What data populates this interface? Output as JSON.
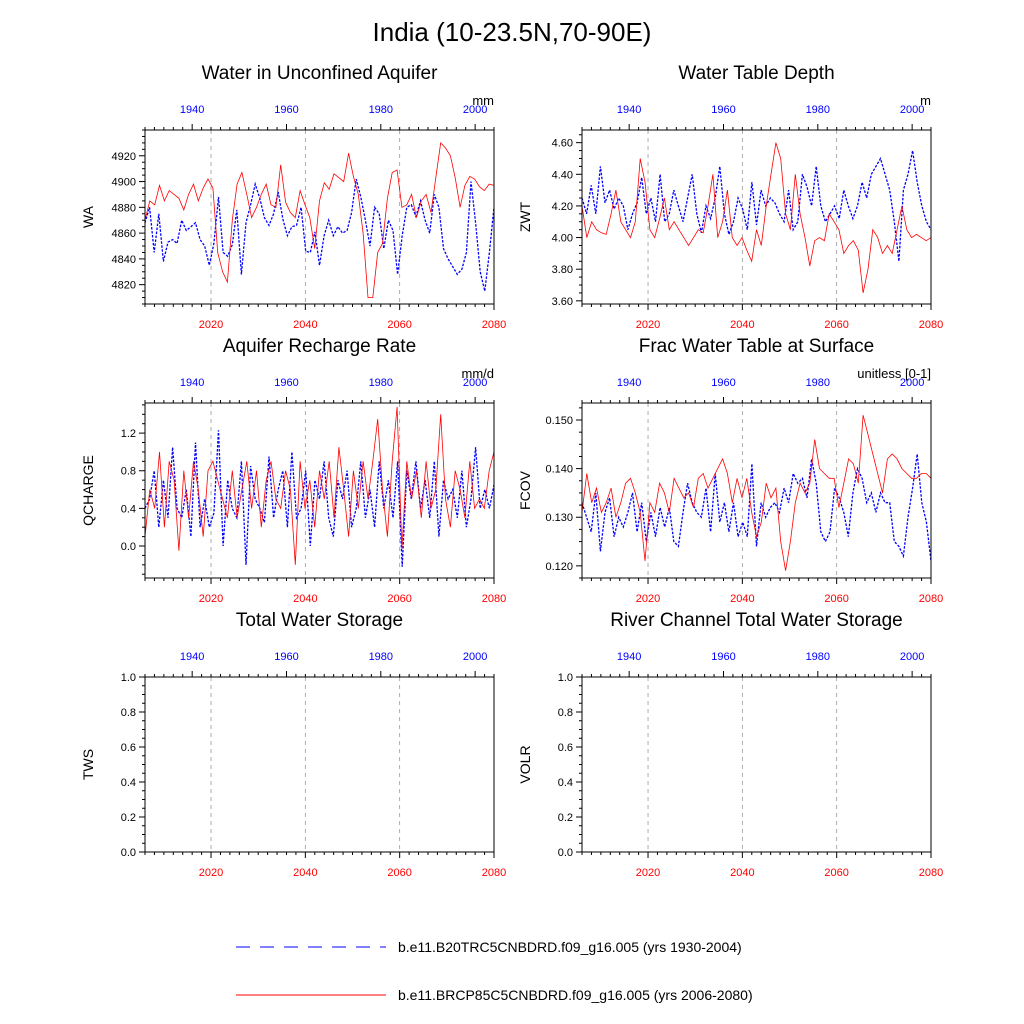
{
  "figure": {
    "title": "India (10-23.5N,70-90E)"
  },
  "legend": {
    "entries": [
      {
        "label": "b.e11.B20TRC5CNBDRD.f09_g16.005 (yrs 1930-2004)",
        "color": "#0000ff",
        "style": "dashed"
      },
      {
        "label": "b.e11.BRCP85C5CNBDRD.f09_g16.005 (yrs 2006-2080)",
        "color": "#ff0000",
        "style": "solid"
      }
    ]
  },
  "colors": {
    "historical": "#0000ff",
    "future": "#ff0000",
    "axis": "#000000",
    "ref_lines": "#999999"
  },
  "chart_data": [
    {
      "type": "line",
      "title": "Water in Unconfined Aquifer",
      "ylabel": "WA",
      "units": "mm",
      "ylim": [
        4805,
        4940
      ],
      "yticks": [
        4820,
        4840,
        4860,
        4880,
        4900,
        4920
      ],
      "ytick_labels": [
        "4820",
        "4840",
        "4860",
        "4880",
        "4900",
        "4920"
      ],
      "bottom_axis": {
        "range": [
          2006,
          2080
        ],
        "ticks": [
          2020,
          2040,
          2060,
          2080
        ],
        "tick_labels": [
          "2020",
          "2040",
          "2060",
          "2080"
        ]
      },
      "top_axis": {
        "range": [
          1930,
          2004
        ],
        "ticks": [
          1940,
          1960,
          1980,
          2000
        ],
        "tick_labels": [
          "1940",
          "1960",
          "1980",
          "2000"
        ]
      },
      "series": [
        {
          "name": "b.e11.B20TRC5CNBDRD.f09_g16.005",
          "years": "1930-2004",
          "values": [
            4868,
            4880,
            4845,
            4875,
            4838,
            4853,
            4855,
            4852,
            4870,
            4862,
            4865,
            4868,
            4855,
            4850,
            4835,
            4852,
            4888,
            4845,
            4842,
            4851,
            4878,
            4828,
            4868,
            4882,
            4898,
            4887,
            4872,
            4866,
            4875,
            4892,
            4871,
            4858,
            4865,
            4866,
            4880,
            4846,
            4845,
            4861,
            4835,
            4858,
            4870,
            4858,
            4865,
            4860,
            4862,
            4876,
            4902,
            4888,
            4870,
            4850,
            4880,
            4875,
            4848,
            4870,
            4862,
            4828,
            4858,
            4880,
            4882,
            4873,
            4885,
            4870,
            4860,
            4890,
            4880,
            4848,
            4840,
            4834,
            4828,
            4832,
            4845,
            4900,
            4868,
            4830,
            4815,
            4845,
            4880
          ]
        },
        {
          "name": "b.e11.BRCP85C5CNBDRD.f09_g16.005",
          "years": "2006-2080",
          "values": [
            4870,
            4885,
            4882,
            4897,
            4885,
            4893,
            4890,
            4887,
            4878,
            4890,
            4898,
            4885,
            4895,
            4902,
            4895,
            4845,
            4830,
            4822,
            4870,
            4898,
            4907,
            4890,
            4872,
            4880,
            4890,
            4898,
            4882,
            4880,
            4913,
            4884,
            4876,
            4872,
            4893,
            4882,
            4872,
            4848,
            4885,
            4899,
            4894,
            4906,
            4903,
            4900,
            4922,
            4904,
            4890,
            4860,
            4810,
            4810,
            4845,
            4852,
            4887,
            4907,
            4909,
            4880,
            4882,
            4890,
            4872,
            4885,
            4890,
            4876,
            4903,
            4930,
            4926,
            4920,
            4903,
            4880,
            4897,
            4904,
            4902,
            4896,
            4893,
            4898,
            4897
          ]
        }
      ]
    },
    {
      "type": "line",
      "title": "Water Table Depth",
      "ylabel": "ZWT",
      "units": "m",
      "ylim": [
        3.58,
        4.68
      ],
      "yticks": [
        3.6,
        3.8,
        4.0,
        4.2,
        4.4,
        4.6
      ],
      "ytick_labels": [
        "3.60",
        "3.80",
        "4.00",
        "4.20",
        "4.40",
        "4.60"
      ],
      "bottom_axis": {
        "range": [
          2006,
          2080
        ],
        "ticks": [
          2020,
          2040,
          2060,
          2080
        ],
        "tick_labels": [
          "2020",
          "2040",
          "2060",
          "2080"
        ]
      },
      "top_axis": {
        "range": [
          1930,
          2004
        ],
        "ticks": [
          1940,
          1960,
          1980,
          2000
        ],
        "tick_labels": [
          "1940",
          "1960",
          "1980",
          "2000"
        ]
      },
      "series": [
        {
          "name": "b.e11.B20TRC5CNBDRD.f09_g16.005",
          "years": "1930-2004",
          "values": [
            4.25,
            4.15,
            4.33,
            4.15,
            4.45,
            4.22,
            4.3,
            4.18,
            4.25,
            4.2,
            4.05,
            4.15,
            4.22,
            4.38,
            4.15,
            4.25,
            4.1,
            4.4,
            4.1,
            4.15,
            4.3,
            4.2,
            4.1,
            4.25,
            4.4,
            4.15,
            4.03,
            4.2,
            4.12,
            4.25,
            4.45,
            4.15,
            4.02,
            4.1,
            4.25,
            4.18,
            4.05,
            4.35,
            4.08,
            4.3,
            4.2,
            4.25,
            4.22,
            4.15,
            4.1,
            4.3,
            4.05,
            4.1,
            4.4,
            4.32,
            4.2,
            4.45,
            4.2,
            4.1,
            4.15,
            4.2,
            4.12,
            4.3,
            4.2,
            4.12,
            4.2,
            4.35,
            4.25,
            4.4,
            4.45,
            4.5,
            4.4,
            4.3,
            4.1,
            3.85,
            4.3,
            4.4,
            4.55,
            4.35,
            4.2,
            4.1,
            4.05
          ]
        },
        {
          "name": "b.e11.BRCP85C5CNBDRD.f09_g16.005",
          "years": "2006-2080",
          "values": [
            4.2,
            4.0,
            4.1,
            4.05,
            4.03,
            4.02,
            4.15,
            4.3,
            4.1,
            4.05,
            4.0,
            4.1,
            4.5,
            4.35,
            4.05,
            4.0,
            4.12,
            4.25,
            4.05,
            4.1,
            4.05,
            4.0,
            3.95,
            4.0,
            4.05,
            4.03,
            4.2,
            4.4,
            4.0,
            4.1,
            4.3,
            4.0,
            3.95,
            4.0,
            3.92,
            3.85,
            4.05,
            3.95,
            4.2,
            4.4,
            4.6,
            4.5,
            4.15,
            4.05,
            4.4,
            4.15,
            4.0,
            3.82,
            3.98,
            4.0,
            3.98,
            4.15,
            4.1,
            4.05,
            3.9,
            3.95,
            3.98,
            3.92,
            3.65,
            3.8,
            4.05,
            4.0,
            3.9,
            3.95,
            3.9,
            4.05,
            4.2,
            4.05,
            4.0,
            4.02,
            4.0,
            3.98,
            4.0
          ]
        }
      ]
    },
    {
      "type": "line",
      "title": "Aquifer Recharge Rate",
      "ylabel": "QCHARGE",
      "units": "mm/d",
      "ylim": [
        -0.34,
        1.52
      ],
      "yticks": [
        0.0,
        0.4,
        0.8,
        1.2
      ],
      "ytick_labels": [
        "0.0",
        "0.4",
        "0.8",
        "1.2"
      ],
      "bottom_axis": {
        "range": [
          2006,
          2080
        ],
        "ticks": [
          2020,
          2040,
          2060,
          2080
        ],
        "tick_labels": [
          "2020",
          "2040",
          "2060",
          "2080"
        ]
      },
      "top_axis": {
        "range": [
          1930,
          2004
        ],
        "ticks": [
          1940,
          1960,
          1980,
          2000
        ],
        "tick_labels": [
          "1940",
          "1960",
          "1980",
          "2000"
        ]
      },
      "series": [
        {
          "name": "b.e11.B20TRC5CNBDRD.f09_g16.005",
          "years": "1930-2004",
          "values": [
            0.4,
            0.5,
            0.8,
            0.2,
            0.7,
            0.3,
            1.05,
            0.4,
            0.3,
            0.6,
            0.1,
            1.1,
            0.2,
            0.5,
            0.2,
            0.35,
            1.23,
            0.0,
            0.7,
            0.4,
            0.3,
            0.9,
            -0.2,
            0.85,
            0.5,
            0.4,
            0.25,
            0.95,
            0.3,
            0.6,
            0.8,
            0.2,
            1.0,
            0.3,
            0.4,
            0.8,
            0.0,
            0.7,
            0.5,
            0.9,
            0.3,
            0.1,
            0.7,
            0.5,
            0.8,
            0.2,
            0.4,
            0.9,
            0.3,
            0.6,
            0.2,
            0.9,
            0.4,
            0.7,
            0.3,
            0.9,
            -0.22,
            0.8,
            0.5,
            0.9,
            0.4,
            0.7,
            0.3,
            0.9,
            0.1,
            0.7,
            0.5,
            0.6,
            0.3,
            0.8,
            0.2,
            0.5,
            1.05,
            0.4,
            0.6,
            0.4,
            0.65
          ]
        },
        {
          "name": "b.e11.BRCP85C5CNBDRD.f09_g16.005",
          "years": "2006-2080",
          "values": [
            0.1,
            0.6,
            0.4,
            1.0,
            0.2,
            0.9,
            0.7,
            -0.05,
            0.8,
            0.3,
            0.9,
            0.6,
            0.1,
            0.8,
            0.9,
            0.7,
            0.5,
            0.3,
            0.8,
            0.3,
            0.6,
            0.9,
            0.4,
            0.8,
            0.2,
            0.7,
            0.9,
            0.5,
            0.4,
            0.8,
            0.6,
            -0.2,
            0.9,
            0.4,
            0.7,
            0.2,
            0.8,
            0.5,
            0.9,
            0.3,
            1.05,
            0.6,
            0.1,
            0.8,
            0.4,
            0.9,
            0.5,
            0.9,
            1.35,
            0.6,
            0.1,
            0.9,
            1.48,
            -0.03,
            0.9,
            0.5,
            0.8,
            0.3,
            0.9,
            0.4,
            0.6,
            1.4,
            0.5,
            0.2,
            0.8,
            0.6,
            0.3,
            0.9,
            0.4,
            0.5,
            0.4,
            0.8,
            1.0
          ]
        }
      ]
    },
    {
      "type": "line",
      "title": "Frac Water Table at Surface",
      "ylabel": "FCOV",
      "units": "unitless [0-1]",
      "ylim": [
        0.1175,
        0.1535
      ],
      "yticks": [
        0.12,
        0.13,
        0.14,
        0.15
      ],
      "ytick_labels": [
        "0.120",
        "0.130",
        "0.140",
        "0.150"
      ],
      "bottom_axis": {
        "range": [
          2006,
          2080
        ],
        "ticks": [
          2020,
          2040,
          2060,
          2080
        ],
        "tick_labels": [
          "2020",
          "2040",
          "2060",
          "2080"
        ]
      },
      "top_axis": {
        "range": [
          1930,
          2004
        ],
        "ticks": [
          1940,
          1960,
          1980,
          2000
        ],
        "tick_labels": [
          "1940",
          "1960",
          "1980",
          "2000"
        ]
      },
      "series": [
        {
          "name": "b.e11.B20TRC5CNBDRD.f09_g16.005",
          "years": "1930-2004",
          "values": [
            0.133,
            0.13,
            0.127,
            0.135,
            0.123,
            0.131,
            0.134,
            0.126,
            0.13,
            0.128,
            0.131,
            0.135,
            0.127,
            0.133,
            0.125,
            0.131,
            0.126,
            0.132,
            0.128,
            0.132,
            0.125,
            0.124,
            0.131,
            0.137,
            0.133,
            0.131,
            0.13,
            0.136,
            0.127,
            0.139,
            0.129,
            0.133,
            0.127,
            0.133,
            0.126,
            0.129,
            0.126,
            0.141,
            0.124,
            0.133,
            0.13,
            0.132,
            0.133,
            0.131,
            0.136,
            0.133,
            0.139,
            0.137,
            0.138,
            0.134,
            0.142,
            0.137,
            0.127,
            0.125,
            0.127,
            0.136,
            0.134,
            0.131,
            0.126,
            0.135,
            0.14,
            0.138,
            0.133,
            0.135,
            0.131,
            0.135,
            0.133,
            0.133,
            0.125,
            0.124,
            0.122,
            0.13,
            0.136,
            0.143,
            0.133,
            0.129,
            0.121
          ]
        },
        {
          "name": "b.e11.BRCP85C5CNBDRD.f09_g16.005",
          "years": "2006-2080",
          "values": [
            0.131,
            0.139,
            0.133,
            0.136,
            0.131,
            0.133,
            0.136,
            0.13,
            0.133,
            0.137,
            0.138,
            0.135,
            0.131,
            0.121,
            0.133,
            0.131,
            0.137,
            0.135,
            0.131,
            0.138,
            0.136,
            0.134,
            0.135,
            0.132,
            0.138,
            0.139,
            0.136,
            0.138,
            0.14,
            0.142,
            0.139,
            0.133,
            0.138,
            0.134,
            0.138,
            0.131,
            0.126,
            0.129,
            0.137,
            0.134,
            0.136,
            0.125,
            0.119,
            0.125,
            0.133,
            0.137,
            0.135,
            0.137,
            0.146,
            0.14,
            0.139,
            0.138,
            0.138,
            0.132,
            0.137,
            0.142,
            0.141,
            0.137,
            0.151,
            0.147,
            0.143,
            0.139,
            0.135,
            0.142,
            0.143,
            0.142,
            0.14,
            0.139,
            0.138,
            0.138,
            0.139,
            0.139,
            0.138
          ]
        }
      ]
    },
    {
      "type": "line",
      "title": "Total Water Storage",
      "ylabel": "TWS",
      "units": "",
      "ylim": [
        0.0,
        1.0
      ],
      "yticks": [
        0.0,
        0.2,
        0.4,
        0.6,
        0.8,
        1.0
      ],
      "ytick_labels": [
        "0.0",
        "0.2",
        "0.4",
        "0.6",
        "0.8",
        "1.0"
      ],
      "bottom_axis": {
        "range": [
          2006,
          2080
        ],
        "ticks": [
          2020,
          2040,
          2060,
          2080
        ],
        "tick_labels": [
          "2020",
          "2040",
          "2060",
          "2080"
        ]
      },
      "top_axis": {
        "range": [
          1930,
          2004
        ],
        "ticks": [
          1940,
          1960,
          1980,
          2000
        ],
        "tick_labels": [
          "1940",
          "1960",
          "1980",
          "2000"
        ]
      },
      "series": []
    },
    {
      "type": "line",
      "title": "River Channel Total Water Storage",
      "ylabel": "VOLR",
      "units": "",
      "ylim": [
        0.0,
        1.0
      ],
      "yticks": [
        0.0,
        0.2,
        0.4,
        0.6,
        0.8,
        1.0
      ],
      "ytick_labels": [
        "0.0",
        "0.2",
        "0.4",
        "0.6",
        "0.8",
        "1.0"
      ],
      "bottom_axis": {
        "range": [
          2006,
          2080
        ],
        "ticks": [
          2020,
          2040,
          2060,
          2080
        ],
        "tick_labels": [
          "2020",
          "2040",
          "2060",
          "2080"
        ]
      },
      "top_axis": {
        "range": [
          1930,
          2004
        ],
        "ticks": [
          1940,
          1960,
          1980,
          2000
        ],
        "tick_labels": [
          "1940",
          "1960",
          "1980",
          "2000"
        ]
      },
      "series": []
    }
  ]
}
